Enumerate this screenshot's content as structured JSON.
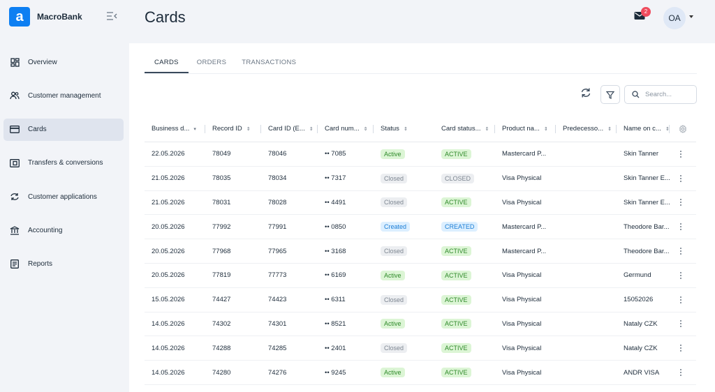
{
  "brand": {
    "name": "MacroBank",
    "logo_letter": "a"
  },
  "sidebar": {
    "items": [
      {
        "label": "Overview",
        "icon": "dashboard-icon"
      },
      {
        "label": "Customer management",
        "icon": "users-icon"
      },
      {
        "label": "Cards",
        "icon": "card-icon",
        "active": true
      },
      {
        "label": "Transfers & conversions",
        "icon": "transfer-icon"
      },
      {
        "label": "Customer applications",
        "icon": "sync-icon"
      },
      {
        "label": "Accounting",
        "icon": "bank-icon"
      },
      {
        "label": "Reports",
        "icon": "report-icon"
      }
    ]
  },
  "header": {
    "title": "Cards",
    "notifications": "2",
    "avatar": "OA"
  },
  "tabs": [
    {
      "label": "CARDS",
      "active": true
    },
    {
      "label": "ORDERS"
    },
    {
      "label": "TRANSACTIONS"
    }
  ],
  "search": {
    "placeholder": "Search..."
  },
  "table": {
    "columns": [
      "Business d...",
      "Record ID",
      "Card ID (E...",
      "Card num...",
      "Status",
      "Card status...",
      "Product na...",
      "Predecesso...",
      "Name on c..."
    ],
    "rows": [
      {
        "date": "22.05.2026",
        "record": "78049",
        "card_id": "78046",
        "card_num": "•• 7085",
        "status": "Active",
        "card_status": "ACTIVE",
        "product": "Mastercard P...",
        "pred": "",
        "name": "Skin Tanner"
      },
      {
        "date": "21.05.2026",
        "record": "78035",
        "card_id": "78034",
        "card_num": "•• 7317",
        "status": "Closed",
        "card_status": "CLOSED",
        "product": "Visa Physical",
        "pred": "",
        "name": "Skin Tanner E..."
      },
      {
        "date": "21.05.2026",
        "record": "78031",
        "card_id": "78028",
        "card_num": "•• 4491",
        "status": "Closed",
        "card_status": "ACTIVE",
        "product": "Visa Physical",
        "pred": "",
        "name": "Skin Tanner E..."
      },
      {
        "date": "20.05.2026",
        "record": "77992",
        "card_id": "77991",
        "card_num": "•• 0850",
        "status": "Created",
        "card_status": "CREATED",
        "product": "Mastercard P...",
        "pred": "",
        "name": "Theodore Bar..."
      },
      {
        "date": "20.05.2026",
        "record": "77968",
        "card_id": "77965",
        "card_num": "•• 3168",
        "status": "Closed",
        "card_status": "ACTIVE",
        "product": "Mastercard P...",
        "pred": "",
        "name": "Theodore Bar..."
      },
      {
        "date": "20.05.2026",
        "record": "77819",
        "card_id": "77773",
        "card_num": "•• 6169",
        "status": "Active",
        "card_status": "ACTIVE",
        "product": "Visa Physical",
        "pred": "",
        "name": "Germund"
      },
      {
        "date": "15.05.2026",
        "record": "74427",
        "card_id": "74423",
        "card_num": "•• 6311",
        "status": "Closed",
        "card_status": "ACTIVE",
        "product": "Visa Physical",
        "pred": "",
        "name": "15052026"
      },
      {
        "date": "14.05.2026",
        "record": "74302",
        "card_id": "74301",
        "card_num": "•• 8521",
        "status": "Active",
        "card_status": "ACTIVE",
        "product": "Visa Physical",
        "pred": "",
        "name": "Nataly CZK"
      },
      {
        "date": "14.05.2026",
        "record": "74288",
        "card_id": "74285",
        "card_num": "•• 2401",
        "status": "Closed",
        "card_status": "ACTIVE",
        "product": "Visa Physical",
        "pred": "",
        "name": "Nataly CZK"
      },
      {
        "date": "14.05.2026",
        "record": "74280",
        "card_id": "74276",
        "card_num": "•• 9245",
        "status": "Active",
        "card_status": "ACTIVE",
        "product": "Visa Physical",
        "pred": "",
        "name": "ANDR VISA"
      }
    ]
  },
  "colors": {
    "accent": "#0d7ff2",
    "active_bg": "#dcf5d5",
    "closed_bg": "#eceef1",
    "created_bg": "#dcefff",
    "badge": "#ef4b5d"
  }
}
